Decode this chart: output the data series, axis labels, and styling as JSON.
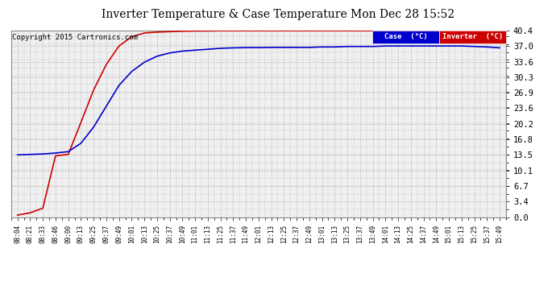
{
  "title": "Inverter Temperature & Case Temperature Mon Dec 28 15:52",
  "copyright": "Copyright 2015 Cartronics.com",
  "background_color": "#ffffff",
  "plot_bg_color": "#f0f0f0",
  "grid_color": "#bbbbbb",
  "yticks": [
    0.0,
    3.4,
    6.7,
    10.1,
    13.5,
    16.8,
    20.2,
    23.6,
    26.9,
    30.3,
    33.6,
    37.0,
    40.4
  ],
  "ylim": [
    0.0,
    40.4
  ],
  "xtick_labels": [
    "08:04",
    "08:21",
    "08:33",
    "08:46",
    "09:00",
    "09:13",
    "09:25",
    "09:37",
    "09:49",
    "10:01",
    "10:13",
    "10:25",
    "10:37",
    "10:49",
    "11:01",
    "11:13",
    "11:25",
    "11:37",
    "11:49",
    "12:01",
    "12:13",
    "12:25",
    "12:37",
    "12:49",
    "13:01",
    "13:13",
    "13:25",
    "13:37",
    "13:49",
    "14:01",
    "14:13",
    "14:25",
    "14:37",
    "14:49",
    "15:01",
    "15:13",
    "15:25",
    "15:37",
    "15:49"
  ],
  "legend_case_label": "Case  (°C)",
  "legend_inverter_label": "Inverter  (°C)",
  "case_color": "#0000cc",
  "inverter_color": "#cc0000",
  "legend_case_bg": "#0000cc",
  "legend_inverter_bg": "#cc0000",
  "case_data": [
    13.5,
    13.6,
    13.7,
    13.9,
    14.2,
    16.0,
    19.5,
    24.0,
    28.5,
    31.5,
    33.5,
    34.8,
    35.5,
    35.9,
    36.1,
    36.3,
    36.5,
    36.6,
    36.65,
    36.65,
    36.7,
    36.7,
    36.7,
    36.7,
    36.8,
    36.8,
    36.9,
    36.9,
    36.9,
    37.0,
    37.0,
    37.0,
    37.0,
    37.0,
    37.0,
    37.0,
    36.9,
    36.8,
    36.6
  ],
  "inverter_data": [
    0.5,
    1.0,
    2.0,
    13.3,
    13.6,
    20.5,
    27.5,
    33.0,
    37.0,
    39.0,
    39.8,
    40.0,
    40.1,
    40.2,
    40.25,
    40.25,
    40.3,
    40.3,
    40.3,
    40.3,
    40.3,
    40.3,
    40.3,
    40.3,
    40.3,
    40.3,
    40.3,
    40.3,
    40.3,
    40.3,
    40.3,
    40.3,
    40.3,
    40.3,
    40.3,
    40.2,
    40.2,
    40.1,
    39.8
  ]
}
